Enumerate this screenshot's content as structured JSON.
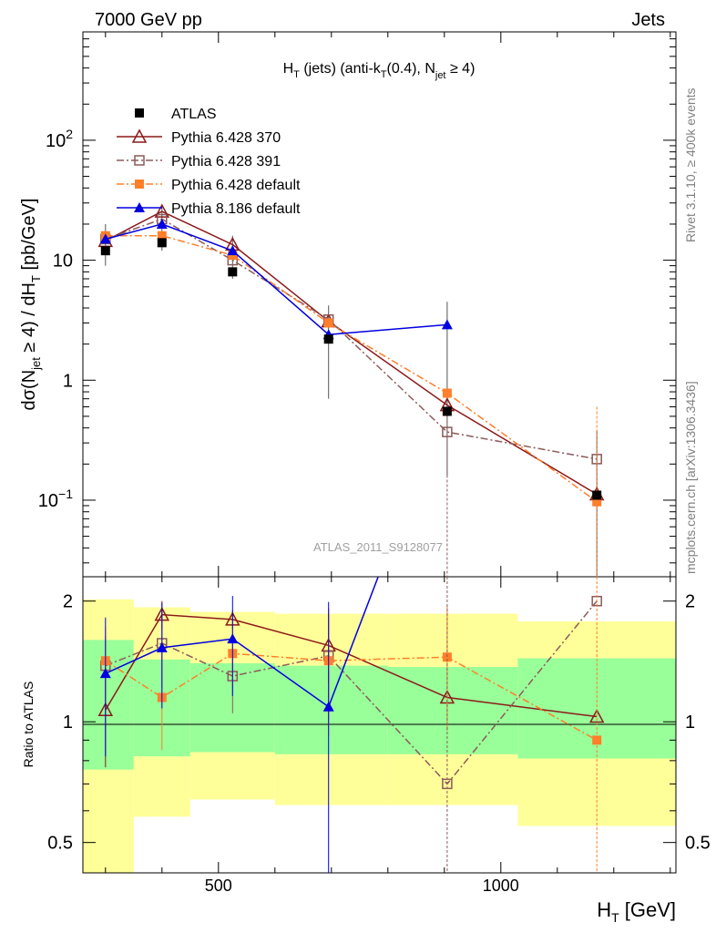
{
  "header": {
    "left": "7000 GeV pp",
    "right": "Jets"
  },
  "side_labels": {
    "rivet": "Rivet 3.1.10, ≥ 400k events",
    "mcplots": "mcplots.cern.ch [arXiv:1306.3436]"
  },
  "chart_data": {
    "type": "scatter",
    "analysis_tag": "ATLAS_2011_S9128077",
    "title_parts": {
      "h": "H",
      "t": "T",
      "mid": " (jets) (anti-k",
      "t2": "T",
      "r": "(0.4), N",
      "jet": "jet",
      "end": " ≥ 4)"
    },
    "ylabel_parts": {
      "a": "dσ(N",
      "jet": "jet",
      "b": " ≥ 4) / dH",
      "t": "T",
      "c": " [pb/GeV]"
    },
    "xlabel_parts": {
      "h": "H",
      "t": "T",
      "u": " [GeV]"
    },
    "ratio_ylabel": "Ratio to ATLAS",
    "x_ticks": [
      "500",
      "1000"
    ],
    "y_ticks_main": [
      {
        "value": 100,
        "base": "10",
        "exp": "2"
      },
      {
        "value": 10,
        "base": "10",
        "exp": ""
      },
      {
        "value": 1,
        "base": "1",
        "exp": ""
      },
      {
        "value": 0.1,
        "base": "10",
        "exp": "−1"
      }
    ],
    "y_ticks_ratio": [
      "2",
      "1",
      "0.5"
    ],
    "xlim": [
      260,
      1310
    ],
    "ylim_main": [
      0.023,
      800
    ],
    "ylim_ratio": [
      0.42,
      2.3
    ],
    "y_log": true,
    "legend_position": "top-left",
    "bins": [
      {
        "x": 300,
        "low": 260,
        "high": 350,
        "data": 12,
        "band_inner": [
          0.76,
          1.6
        ],
        "band_outer": [
          0.42,
          2.02
        ]
      },
      {
        "x": 400,
        "low": 350,
        "high": 450,
        "data": 14,
        "band_inner": [
          0.82,
          1.43
        ],
        "band_outer": [
          0.58,
          1.93
        ]
      },
      {
        "x": 525,
        "low": 450,
        "high": 600,
        "data": 8,
        "band_inner": [
          0.84,
          1.4
        ],
        "band_outer": [
          0.64,
          1.88
        ]
      },
      {
        "x": 695,
        "low": 600,
        "high": 800,
        "data": 2.2,
        "band_inner": [
          0.83,
          1.38
        ],
        "band_outer": [
          0.62,
          1.86
        ]
      },
      {
        "x": 905,
        "low": 800,
        "high": 1030,
        "data": 0.55,
        "band_inner": [
          0.83,
          1.37
        ],
        "band_outer": [
          0.62,
          1.86
        ]
      },
      {
        "x": 1170,
        "low": 1030,
        "high": 1310,
        "data": 0.11,
        "band_inner": [
          0.81,
          1.44
        ],
        "band_outer": [
          0.55,
          1.78
        ]
      }
    ],
    "data_series": {
      "name": "ATLAS",
      "color": "#000000",
      "values": [
        12,
        14,
        8,
        2.2,
        0.55,
        0.11
      ]
    },
    "series": [
      {
        "name": "Pythia 6.428 370",
        "color": "#8b1a1a",
        "marker": "open-triangle",
        "dash": "",
        "x": [
          300,
          400,
          525,
          695,
          905,
          1170
        ],
        "values": [
          14.5,
          25.5,
          13.5,
          3.1,
          0.62,
          0.112
        ],
        "ratio": [
          1.07,
          1.85,
          1.8,
          1.55,
          1.15,
          1.03
        ],
        "ratio_err": [
          0.3,
          0.15,
          0.1,
          0.3,
          0.0,
          0.0
        ]
      },
      {
        "name": "Pythia 6.428 391",
        "color": "#8b5a5a",
        "marker": "open-square",
        "dash": "8,3,2,3",
        "x": [
          300,
          400,
          525,
          695,
          905,
          1170
        ],
        "values": [
          15,
          22,
          10,
          3.2,
          0.37,
          0.22
        ],
        "ratio": [
          1.38,
          1.57,
          1.3,
          1.46,
          0.7,
          2.0
        ],
        "ratio_err": [
          0.25,
          0.35,
          0.25,
          0.45,
          0.0,
          0.0
        ]
      },
      {
        "name": "Pythia 6.428 default",
        "color": "#ff7f2a",
        "marker": "square",
        "dash": "8,3,2,3",
        "x": [
          300,
          400,
          525,
          695,
          905,
          1170
        ],
        "values": [
          16,
          16,
          11,
          3.0,
          0.78,
          0.097
        ],
        "ratio": [
          1.42,
          1.15,
          1.48,
          1.42,
          1.45,
          0.9
        ],
        "ratio_err": [
          0.3,
          0.3,
          0.25,
          0.5,
          0.5,
          0.0
        ]
      },
      {
        "name": "Pythia 8.186 default",
        "color": "#0000e0",
        "marker": "triangle",
        "dash": "",
        "x": [
          300,
          400,
          525,
          695,
          905,
          1170
        ],
        "values": [
          15,
          20,
          12,
          2.4,
          2.9,
          null
        ],
        "ratio": [
          1.32,
          1.53,
          1.61,
          1.09,
          6.5,
          null
        ],
        "ratio_err": [
          0.5,
          0.45,
          0.45,
          0.9,
          0,
          0
        ]
      }
    ],
    "main_errors": [
      {
        "x": 300,
        "lo": 9,
        "hi": 20
      },
      {
        "x": 400,
        "lo": 12,
        "hi": 28
      },
      {
        "x": 525,
        "lo": 7,
        "hi": 16
      },
      {
        "x": 695,
        "lo": 0.7,
        "hi": 4.2
      },
      {
        "x": 905,
        "lo": 0.16,
        "hi": 4.5
      },
      {
        "x": 1170,
        "lo": 0.023,
        "hi": 0.38
      }
    ]
  }
}
